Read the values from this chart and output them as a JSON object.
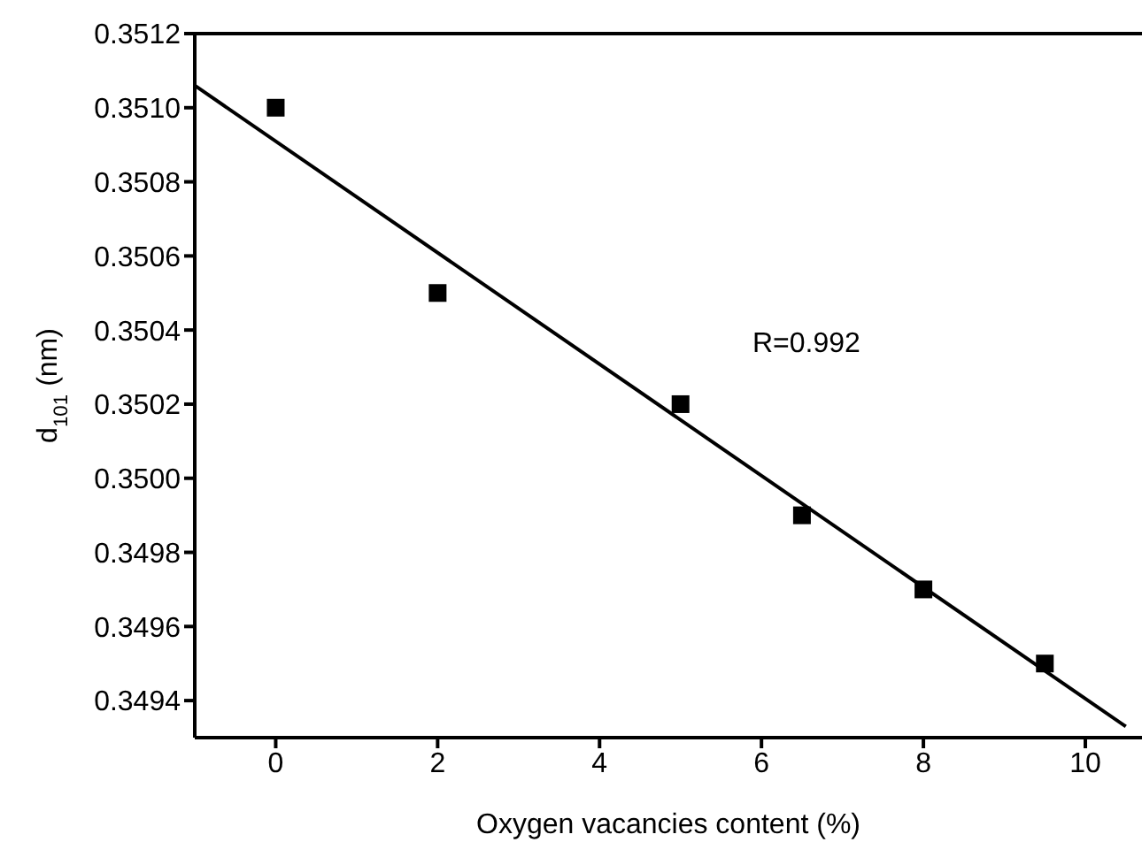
{
  "chart_data": {
    "type": "scatter",
    "xlabel": "Oxygen vacancies content (%)",
    "ylabel": "d$_{101}$ (nm)",
    "annotations": [
      "R=0.992"
    ],
    "series": [
      {
        "color": "#000000",
        "x": [
          0,
          2,
          5,
          6.5,
          8,
          9.5
        ],
        "values": [
          0.351,
          0.3505,
          0.3502,
          0.3499,
          0.3497,
          0.3495
        ],
        "marker": "square"
      },
      {
        "type": "line",
        "color": "#000000",
        "x": [
          -1,
          10.5
        ],
        "values": [
          0.35106,
          0.34933
        ],
        "marker": "none",
        "line_style": "solid"
      }
    ],
    "xlim": [
      -1,
      10.7
    ],
    "xticks": [
      0,
      2,
      4,
      6,
      8,
      10
    ],
    "ylim": [
      0.3493,
      0.3512
    ],
    "yticks": [
      {
        "value": 0.3494,
        "label": "0.3494"
      },
      {
        "value": 0.3496,
        "label": "0.3496"
      },
      {
        "value": 0.3498,
        "label": "0.3498"
      },
      {
        "value": 0.35,
        "label": "0.3500"
      },
      {
        "value": 0.3502,
        "label": "0.3502"
      },
      {
        "value": 0.3504,
        "label": "0.3504"
      },
      {
        "value": 0.3506,
        "label": "0.3506"
      },
      {
        "value": 0.3508,
        "label": "0.3508"
      },
      {
        "value": 0.351,
        "label": "0.3510"
      },
      {
        "value": 0.3512,
        "label": "0.3512"
      }
    ],
    "grid": false,
    "legend": false
  }
}
